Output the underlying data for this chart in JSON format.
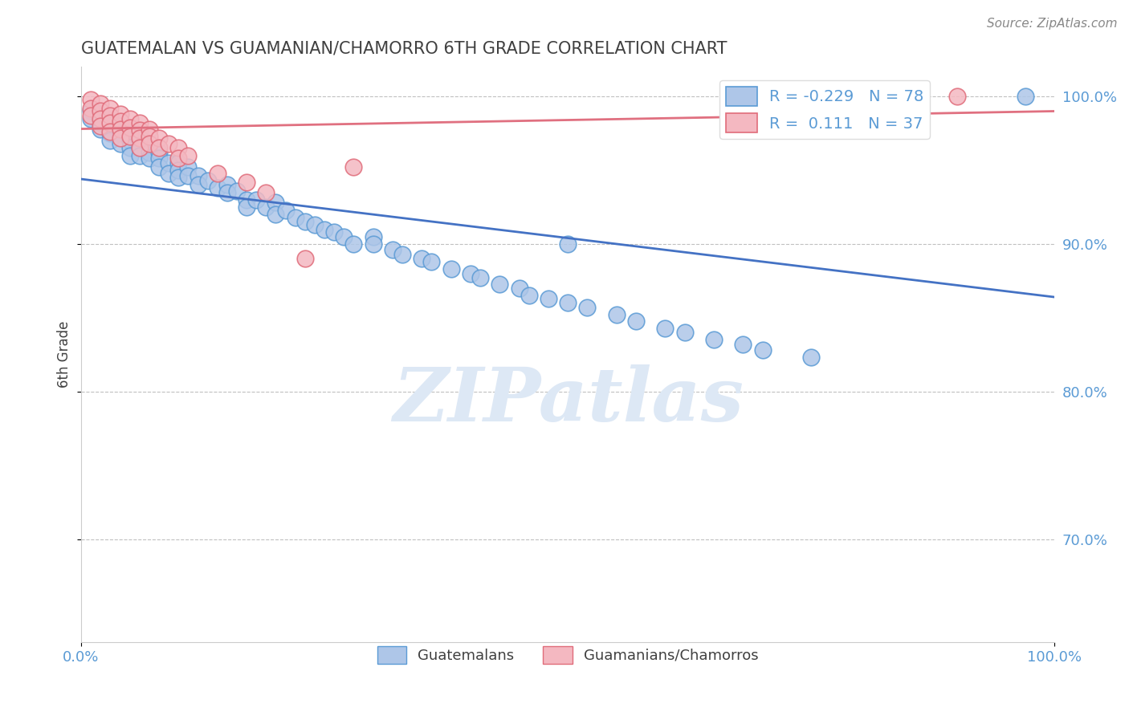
{
  "title": "GUATEMALAN VS GUAMANIAN/CHAMORRO 6TH GRADE CORRELATION CHART",
  "source_text": "Source: ZipAtlas.com",
  "ylabel": "6th Grade",
  "xlabel": "",
  "xlim": [
    0.0,
    1.0
  ],
  "ylim": [
    0.63,
    1.02
  ],
  "yticks": [
    0.7,
    0.8,
    0.9,
    1.0
  ],
  "ytick_labels": [
    "70.0%",
    "80.0%",
    "90.0%",
    "100.0%"
  ],
  "xticks": [
    0.0,
    1.0
  ],
  "xtick_labels": [
    "0.0%",
    "100.0%"
  ],
  "blue_R": -0.229,
  "blue_N": 78,
  "pink_R": 0.111,
  "pink_N": 37,
  "blue_color": "#aec6e8",
  "blue_edge_color": "#5b9bd5",
  "pink_color": "#f4b8c1",
  "pink_edge_color": "#e06c7a",
  "blue_line_color": "#4472c4",
  "pink_line_color": "#e07080",
  "legend_label_blue": "Guatemalans",
  "legend_label_pink": "Guamanians/Chamorros",
  "watermark_text": "ZIPatlas",
  "title_color": "#404040",
  "axis_label_color": "#404040",
  "tick_color": "#5b9bd5",
  "grid_color": "#c0c0c0",
  "blue_scatter_x": [
    0.01,
    0.01,
    0.02,
    0.02,
    0.02,
    0.03,
    0.03,
    0.03,
    0.03,
    0.04,
    0.04,
    0.04,
    0.05,
    0.05,
    0.05,
    0.05,
    0.06,
    0.06,
    0.06,
    0.07,
    0.07,
    0.07,
    0.08,
    0.08,
    0.08,
    0.09,
    0.09,
    0.1,
    0.1,
    0.1,
    0.11,
    0.11,
    0.12,
    0.12,
    0.13,
    0.14,
    0.15,
    0.15,
    0.16,
    0.17,
    0.17,
    0.18,
    0.19,
    0.2,
    0.2,
    0.21,
    0.22,
    0.23,
    0.24,
    0.25,
    0.26,
    0.27,
    0.28,
    0.3,
    0.3,
    0.32,
    0.33,
    0.35,
    0.36,
    0.38,
    0.4,
    0.41,
    0.43,
    0.45,
    0.46,
    0.48,
    0.5,
    0.52,
    0.55,
    0.57,
    0.6,
    0.62,
    0.65,
    0.68,
    0.7,
    0.75,
    0.97,
    0.5
  ],
  "blue_scatter_y": [
    0.99,
    0.985,
    0.988,
    0.982,
    0.978,
    0.985,
    0.98,
    0.975,
    0.97,
    0.98,
    0.975,
    0.968,
    0.975,
    0.97,
    0.965,
    0.96,
    0.97,
    0.965,
    0.96,
    0.968,
    0.962,
    0.958,
    0.962,
    0.958,
    0.952,
    0.955,
    0.948,
    0.955,
    0.95,
    0.945,
    0.952,
    0.946,
    0.946,
    0.94,
    0.943,
    0.938,
    0.94,
    0.935,
    0.936,
    0.93,
    0.925,
    0.93,
    0.925,
    0.928,
    0.92,
    0.923,
    0.918,
    0.915,
    0.913,
    0.91,
    0.908,
    0.905,
    0.9,
    0.905,
    0.9,
    0.896,
    0.893,
    0.89,
    0.888,
    0.883,
    0.88,
    0.877,
    0.873,
    0.87,
    0.865,
    0.863,
    0.86,
    0.857,
    0.852,
    0.848,
    0.843,
    0.84,
    0.835,
    0.832,
    0.828,
    0.823,
    1.0,
    0.9
  ],
  "pink_scatter_x": [
    0.01,
    0.01,
    0.01,
    0.02,
    0.02,
    0.02,
    0.02,
    0.03,
    0.03,
    0.03,
    0.03,
    0.04,
    0.04,
    0.04,
    0.04,
    0.05,
    0.05,
    0.05,
    0.06,
    0.06,
    0.06,
    0.06,
    0.07,
    0.07,
    0.07,
    0.08,
    0.08,
    0.09,
    0.1,
    0.1,
    0.11,
    0.14,
    0.17,
    0.19,
    0.23,
    0.28,
    0.9
  ],
  "pink_scatter_y": [
    0.998,
    0.992,
    0.987,
    0.995,
    0.99,
    0.985,
    0.98,
    0.992,
    0.987,
    0.982,
    0.976,
    0.988,
    0.983,
    0.978,
    0.972,
    0.985,
    0.979,
    0.973,
    0.982,
    0.977,
    0.972,
    0.965,
    0.978,
    0.973,
    0.968,
    0.972,
    0.965,
    0.968,
    0.965,
    0.958,
    0.96,
    0.948,
    0.942,
    0.935,
    0.89,
    0.952,
    1.0
  ]
}
